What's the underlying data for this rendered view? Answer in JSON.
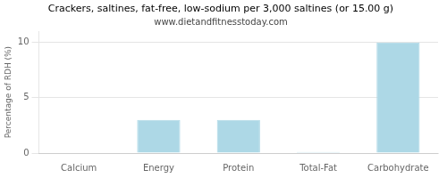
{
  "chart_data": {
    "type": "bar",
    "title": "Crackers, saltines, fat-free, low-sodium per 3,000 saltines (or 15.00 g)",
    "subtitle": "www.dietandfitnesstoday.com",
    "categories": [
      "Calcium",
      "Energy",
      "Protein",
      "Total-Fat",
      "Carbohydrate"
    ],
    "values": [
      0,
      3.0,
      3.0,
      0.1,
      10.0
    ],
    "color": "#add8e6",
    "ylabel": "Percentage of RDH (%)",
    "ylim": [
      0,
      11
    ],
    "yticks": [
      0,
      5,
      10
    ],
    "grid": true
  }
}
